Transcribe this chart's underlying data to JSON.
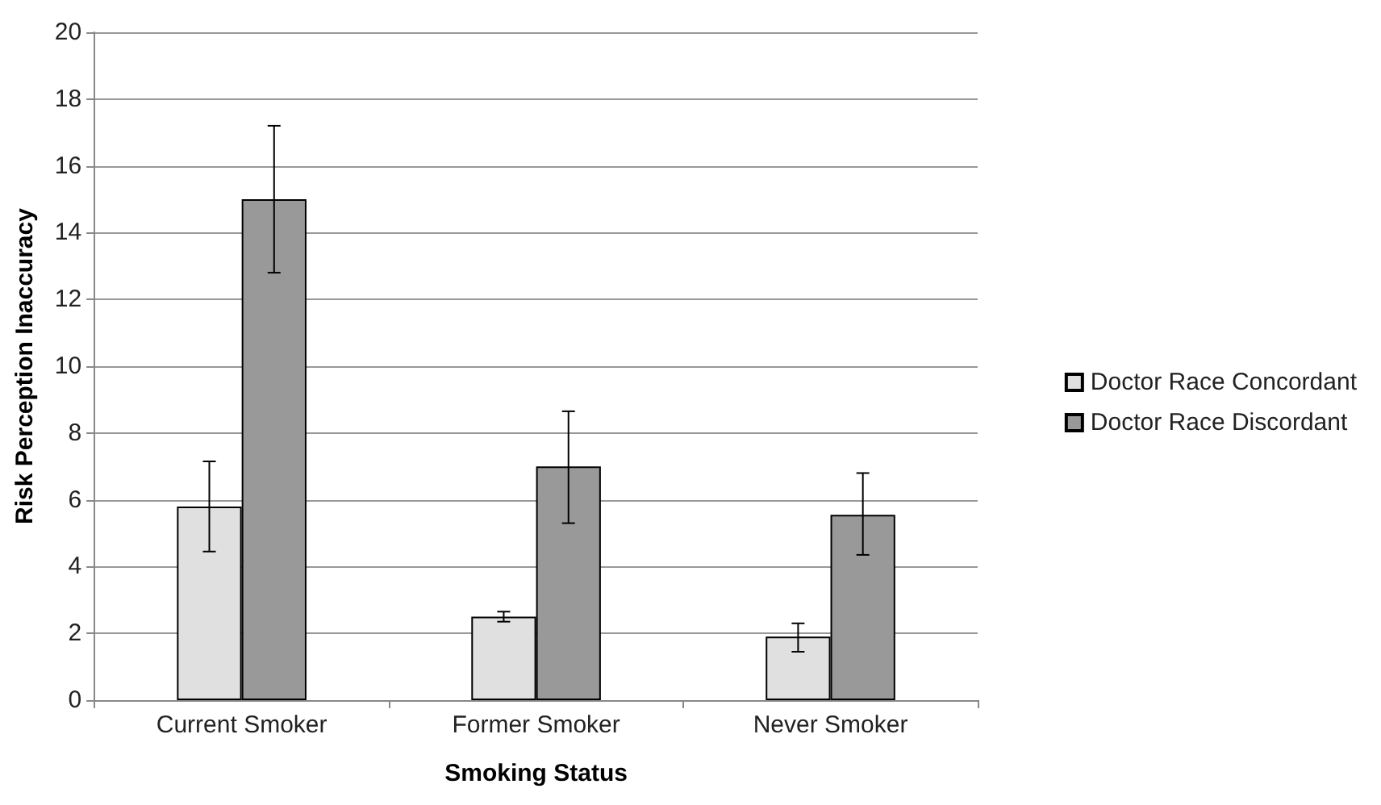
{
  "chart_data": {
    "type": "bar",
    "xlabel": "Smoking Status",
    "ylabel": "Risk Perception Inaccuracy",
    "categories": [
      "Current Smoker",
      "Former Smoker",
      "Never Smoker"
    ],
    "series": [
      {
        "name": "Doctor Race Concordant",
        "color": "#e0e0e0",
        "values": [
          5.8,
          2.5,
          1.9
        ],
        "errors": [
          [
            4.45,
            7.15
          ],
          [
            2.35,
            2.65
          ],
          [
            1.45,
            2.3
          ]
        ]
      },
      {
        "name": "Doctor Race Discordant",
        "color": "#999999",
        "values": [
          15.0,
          7.0,
          5.55
        ],
        "errors": [
          [
            12.8,
            17.2
          ],
          [
            5.3,
            8.65
          ],
          [
            4.35,
            6.8
          ]
        ]
      }
    ],
    "ylim": [
      0,
      20
    ],
    "yticks": [
      0,
      2,
      4,
      6,
      8,
      10,
      12,
      14,
      16,
      18,
      20
    ],
    "grid": "y",
    "legend": "right"
  }
}
